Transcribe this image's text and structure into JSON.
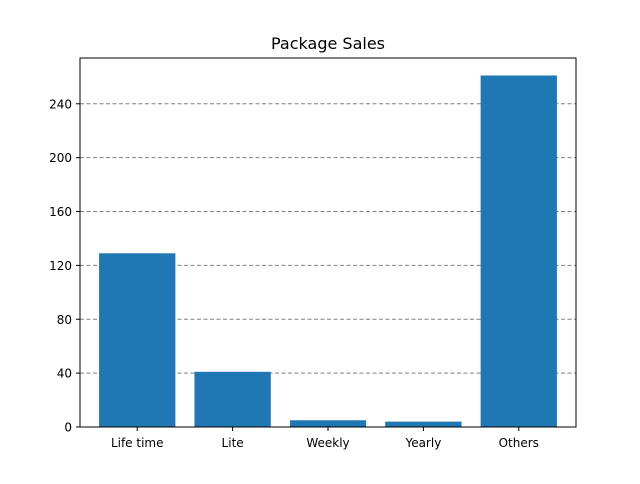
{
  "chart_data": {
    "type": "bar",
    "title": "Package Sales",
    "xlabel": "",
    "ylabel": "",
    "categories": [
      "Life time",
      "Lite",
      "Weekly",
      "Yearly",
      "Others"
    ],
    "values": [
      129,
      41,
      5,
      4,
      261
    ],
    "ylim": [
      0,
      274
    ],
    "yticks": [
      0,
      40,
      80,
      120,
      160,
      200,
      240
    ],
    "grid": "y-dashed",
    "bar_color": "#1f77b4",
    "grid_color": "#808080"
  }
}
